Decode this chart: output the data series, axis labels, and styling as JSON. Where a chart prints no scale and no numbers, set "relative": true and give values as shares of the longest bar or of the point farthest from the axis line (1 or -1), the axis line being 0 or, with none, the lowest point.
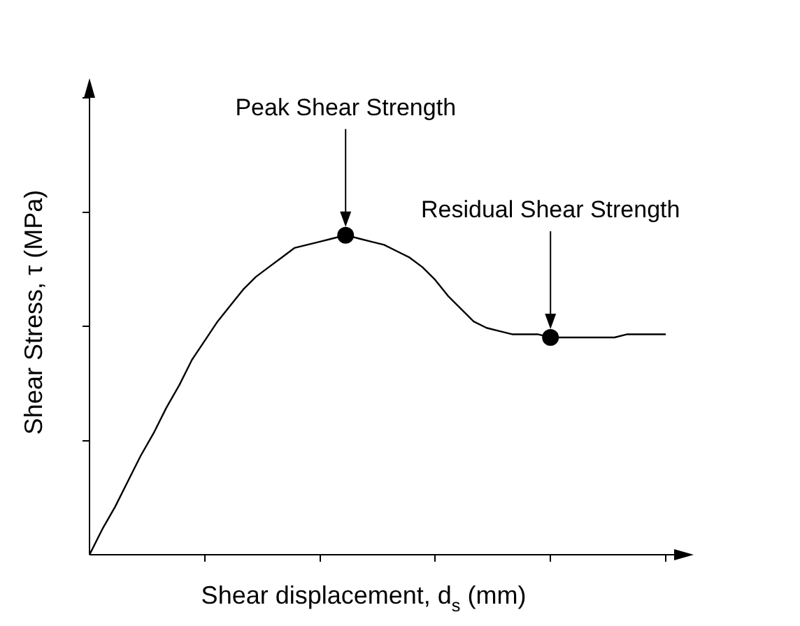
{
  "chart_data": {
    "type": "line",
    "relative": true,
    "categories": [
      null,
      null,
      null,
      null,
      null,
      null,
      null,
      null,
      null,
      null,
      null,
      null,
      null,
      null,
      null,
      null,
      null,
      null,
      null,
      null,
      null,
      null,
      null,
      null,
      null,
      null,
      null,
      null,
      null,
      null,
      null,
      null,
      null,
      null,
      null,
      null,
      null,
      null,
      null,
      null,
      null,
      null,
      null,
      null,
      null,
      null
    ],
    "xlabel": "Shear displacement, d$_{s}$ (mm)",
    "ylabel": "Shear Stress, τ (MPa)",
    "annotations": [
      {
        "text": "Peak Shear Strength",
        "y": 1
      },
      {
        "text": "Residual Shear Strength",
        "y": 0.68
      }
    ],
    "line_style": "solid",
    "series": [
      {
        "type": "line",
        "color": "#000000",
        "values": [
          0,
          0.08,
          0.15,
          0.23,
          0.31,
          0.38,
          0.46,
          0.53,
          0.61,
          0.67,
          0.73,
          0.78,
          0.83,
          0.87,
          0.9,
          0.93,
          0.96,
          0.97,
          0.98,
          0.99,
          1,
          0.99,
          0.98,
          0.97,
          0.95,
          0.93,
          0.9,
          0.86,
          0.81,
          0.77,
          0.73,
          0.71,
          0.7,
          0.69,
          0.69,
          0.69,
          0.68,
          0.68,
          0.68,
          0.68,
          0.68,
          0.68,
          0.69,
          0.69,
          0.69,
          0.69
        ]
      }
    ]
  }
}
